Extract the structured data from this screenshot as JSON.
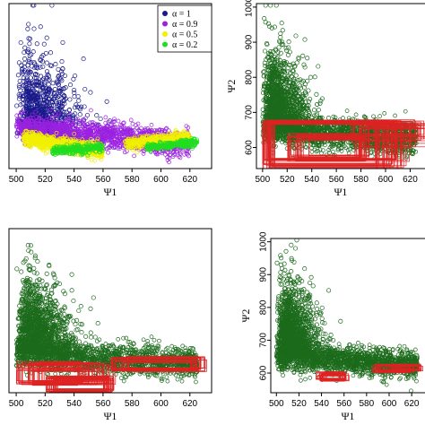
{
  "chart_data": [
    {
      "type": "scatter",
      "panel": "top-left",
      "xlabel": "Ψ1",
      "ylabel": "",
      "xticks": [
        500,
        520,
        540,
        560,
        580,
        600,
        620
      ],
      "xlim": [
        495,
        635
      ],
      "ylim": [
        540,
        1010
      ],
      "grid": false,
      "legend_position": "top-right",
      "series": [
        {
          "name": "α = 1",
          "color": "#1a1a8c",
          "x_range": [
            500,
            622
          ],
          "y_range": [
            620,
            1000
          ]
        },
        {
          "name": "α = 0.9",
          "color": "#9b22e0",
          "x_range": [
            500,
            622
          ],
          "y_range": [
            600,
            720
          ]
        },
        {
          "name": "α = 0.5",
          "color": "#f0f000",
          "x_range": [
            505,
            622
          ],
          "y_range": [
            575,
            650
          ]
        },
        {
          "name": "α = 0.2",
          "color": "#22dd22",
          "x_range": [
            525,
            625
          ],
          "y_range": [
            575,
            620
          ]
        }
      ]
    },
    {
      "type": "scatter",
      "panel": "top-right",
      "xlabel": "Ψ1",
      "ylabel": "Ψ2",
      "xticks": [
        500,
        520,
        540,
        560,
        580,
        600,
        620
      ],
      "yticks": [
        600,
        700,
        800,
        900,
        1000
      ],
      "xlim": [
        495,
        635
      ],
      "ylim": [
        540,
        1010
      ],
      "grid": false,
      "series": [
        {
          "color": "#1c6b1c",
          "x_range": [
            500,
            625
          ],
          "y_range": [
            580,
            1000
          ]
        }
      ],
      "rectangles_color": "#dd2222"
    },
    {
      "type": "scatter",
      "panel": "bottom-left",
      "xlabel": "Ψ1",
      "ylabel": "",
      "xticks": [
        500,
        520,
        540,
        560,
        580,
        600,
        620
      ],
      "xlim": [
        495,
        635
      ],
      "ylim": [
        540,
        1010
      ],
      "grid": false,
      "series": [
        {
          "color": "#1c6b1c",
          "x_range": [
            500,
            625
          ],
          "y_range": [
            580,
            1000
          ]
        }
      ],
      "rectangles_color": "#dd2222"
    },
    {
      "type": "scatter",
      "panel": "bottom-right",
      "xlabel": "Ψ1",
      "ylabel": "Ψ2",
      "xticks": [
        500,
        520,
        540,
        560,
        580,
        600,
        620
      ],
      "yticks": [
        600,
        700,
        800,
        900,
        1000
      ],
      "xlim": [
        495,
        635
      ],
      "ylim": [
        540,
        1010
      ],
      "grid": false,
      "series": [
        {
          "color": "#1c6b1c",
          "x_range": [
            500,
            625
          ],
          "y_range": [
            580,
            1000
          ]
        }
      ],
      "rectangles_color": "#dd2222"
    }
  ]
}
